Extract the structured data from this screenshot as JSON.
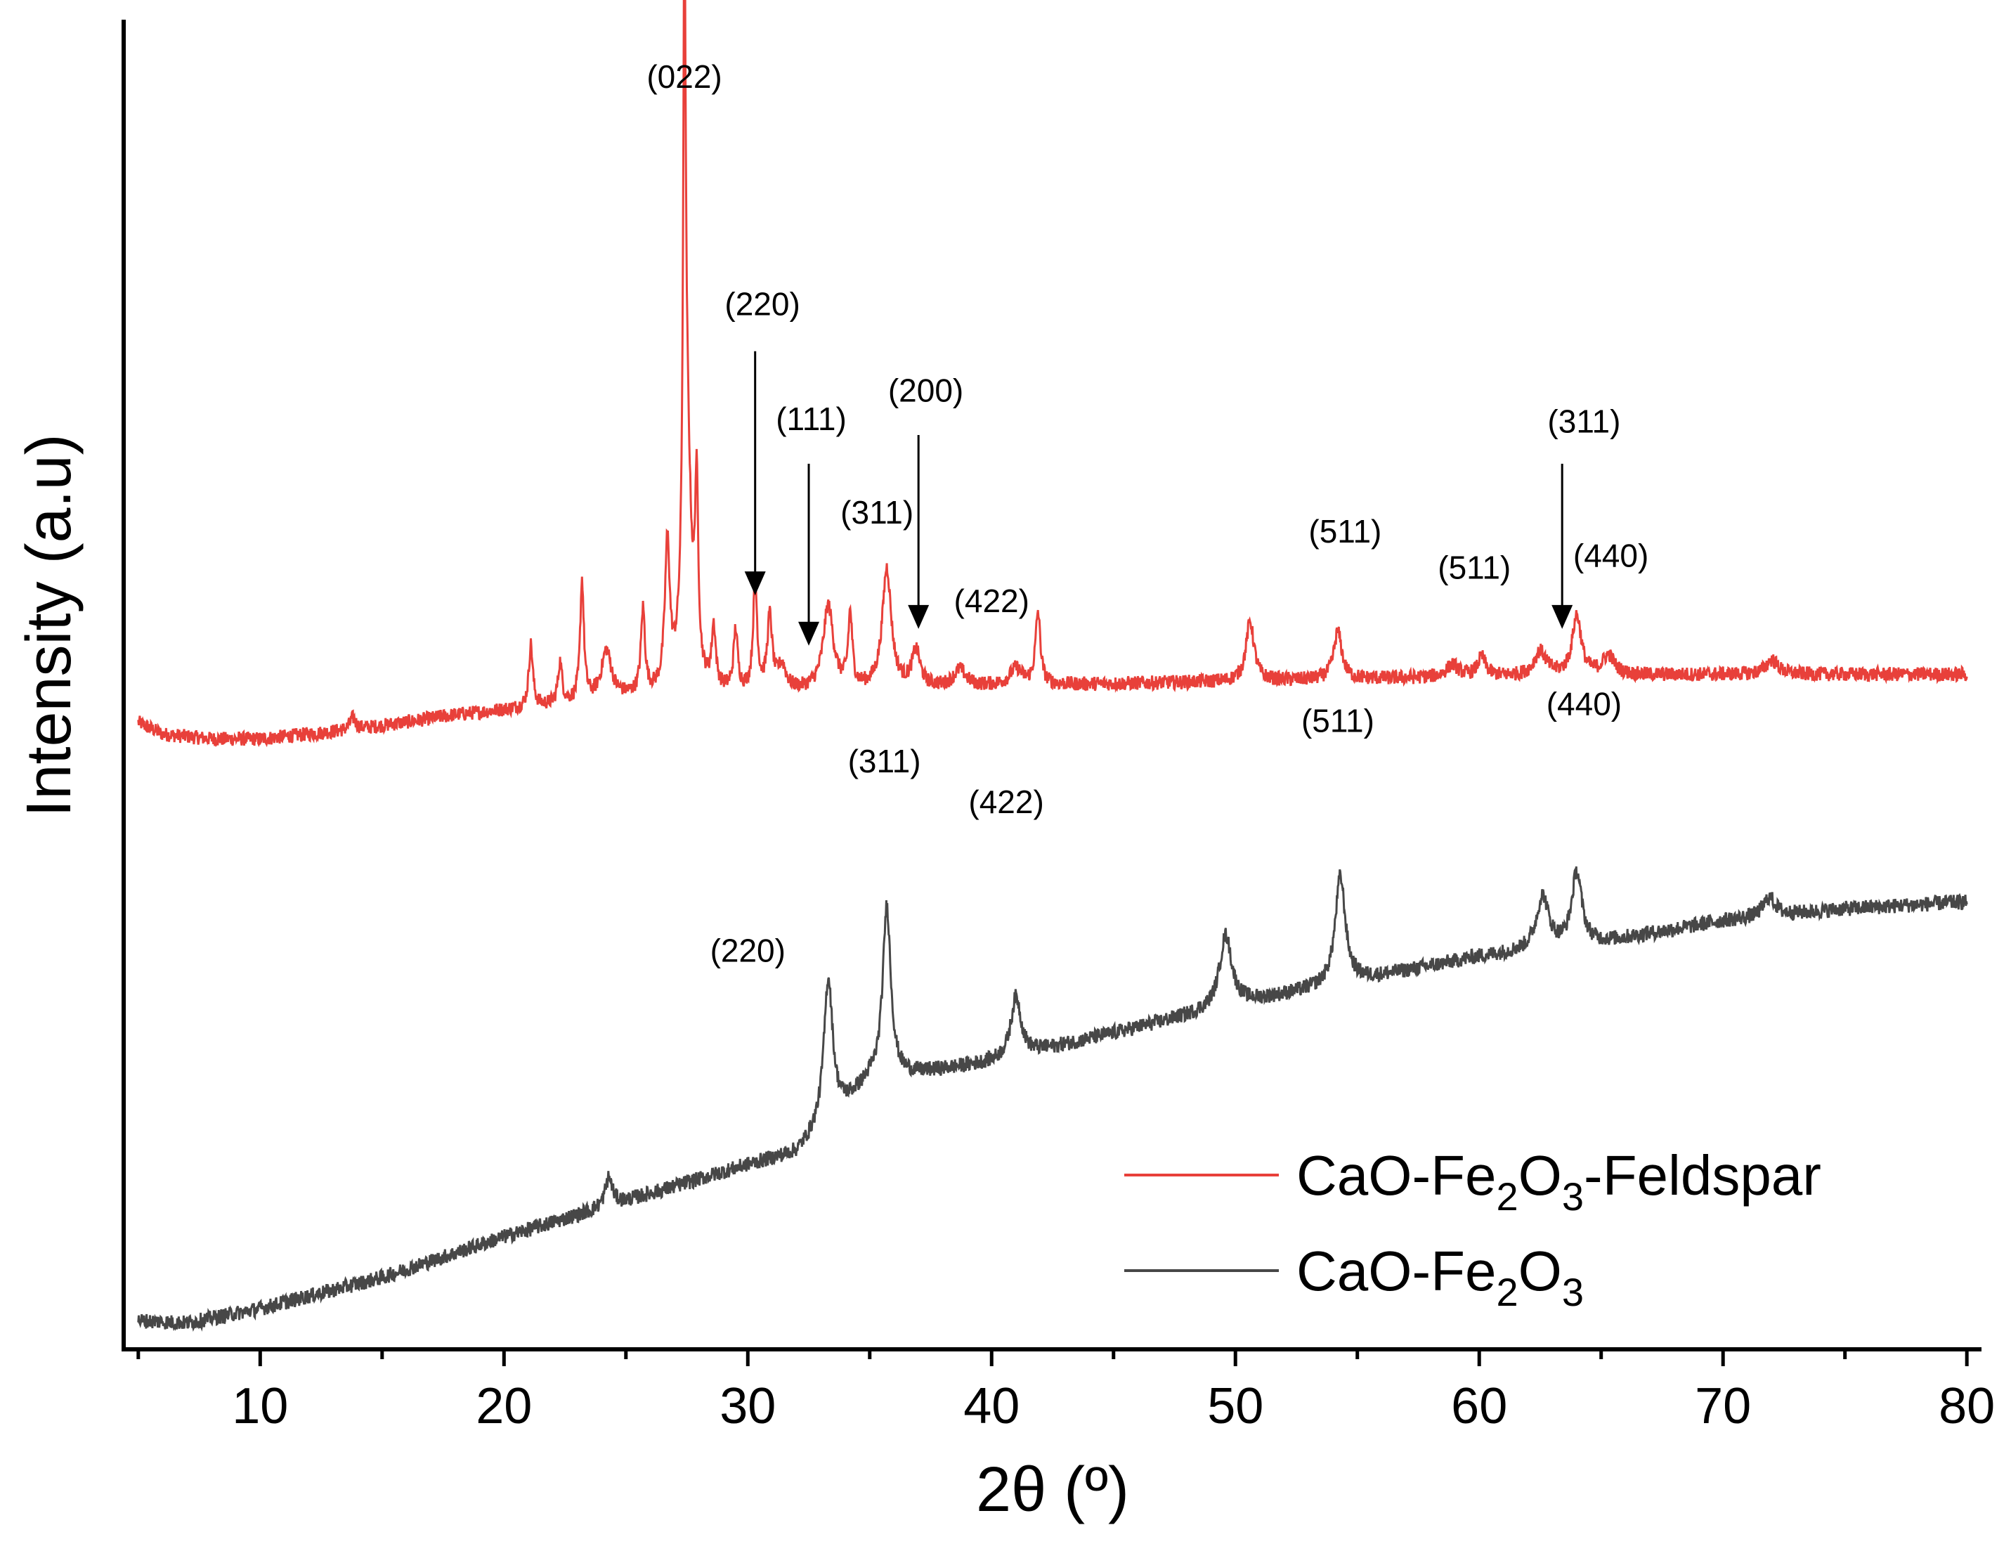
{
  "chart_data": {
    "type": "line",
    "title": "",
    "xlabel": "2θ (º)",
    "ylabel": "Intensity (a.u)",
    "xlim": [
      4.4,
      80.6
    ],
    "ylim": [
      -0.12,
      5.4
    ],
    "x_ticks": [
      10,
      20,
      30,
      40,
      50,
      60,
      70,
      80
    ],
    "x_tick_labels": [
      "10",
      "20",
      "30",
      "40",
      "50",
      "60",
      "70",
      "80"
    ],
    "y_ticks_visible": false,
    "grid": false,
    "legend_position": "bottom-right",
    "series": [
      {
        "name": "CaO-Fe2O3-Feldspar",
        "legend_label": {
          "base": "CaO-Fe",
          "sub1": "2",
          "mid": "O",
          "sub2": "3",
          "tail": "-Feldspar"
        },
        "color": "#e8403a",
        "noise": 0.03,
        "baseline": [
          [
            5,
            2.5
          ],
          [
            6,
            2.45
          ],
          [
            8,
            2.43
          ],
          [
            10,
            2.43
          ],
          [
            14,
            2.47
          ],
          [
            18,
            2.53
          ],
          [
            20,
            2.55
          ],
          [
            21,
            2.56
          ],
          [
            25,
            2.6
          ],
          [
            30,
            2.62
          ],
          [
            40,
            2.65
          ],
          [
            50,
            2.67
          ],
          [
            60,
            2.69
          ],
          [
            70,
            2.7
          ],
          [
            80,
            2.7
          ]
        ],
        "peaks": [
          [
            13.8,
            0.05,
            0.15
          ],
          [
            21.1,
            0.26,
            0.1
          ],
          [
            22.3,
            0.17,
            0.1
          ],
          [
            23.2,
            0.5,
            0.09
          ],
          [
            24.2,
            0.2,
            0.25
          ],
          [
            25.7,
            0.35,
            0.1
          ],
          [
            26.7,
            0.6,
            0.12
          ],
          [
            27.4,
            2.5,
            0.06
          ],
          [
            27.5,
            1.0,
            0.2
          ],
          [
            27.9,
            0.75,
            0.08
          ],
          [
            28.6,
            0.25,
            0.1
          ],
          [
            29.5,
            0.25,
            0.1
          ],
          [
            30.3,
            0.45,
            0.1
          ],
          [
            30.9,
            0.3,
            0.12
          ],
          [
            31.4,
            0.1,
            0.2
          ],
          [
            33.3,
            0.35,
            0.25
          ],
          [
            34.2,
            0.3,
            0.1
          ],
          [
            35.7,
            0.5,
            0.22
          ],
          [
            36.9,
            0.15,
            0.2
          ],
          [
            38.7,
            0.07,
            0.3
          ],
          [
            41.0,
            0.07,
            0.3
          ],
          [
            41.9,
            0.3,
            0.12
          ],
          [
            50.6,
            0.25,
            0.2
          ],
          [
            54.2,
            0.2,
            0.2
          ],
          [
            58.9,
            0.05,
            0.3
          ],
          [
            60.1,
            0.08,
            0.2
          ],
          [
            62.5,
            0.1,
            0.3
          ],
          [
            64.0,
            0.25,
            0.22
          ],
          [
            65.3,
            0.08,
            0.3
          ],
          [
            72.0,
            0.06,
            0.3
          ]
        ]
      },
      {
        "name": "CaO-Fe2O3",
        "legend_label": {
          "base": "CaO-Fe",
          "sub1": "2",
          "mid": "O",
          "sub2": "3",
          "tail": ""
        },
        "color": "#474747",
        "noise": 0.032,
        "baseline": [
          [
            5,
            0
          ],
          [
            7,
            -0.01
          ],
          [
            10,
            0.05
          ],
          [
            15,
            0.18
          ],
          [
            20,
            0.35
          ],
          [
            25,
            0.5
          ],
          [
            30,
            0.65
          ],
          [
            32,
            0.7
          ],
          [
            35,
            1.0
          ],
          [
            40,
            1.08
          ],
          [
            45,
            1.2
          ],
          [
            50,
            1.32
          ],
          [
            55,
            1.42
          ],
          [
            60,
            1.52
          ],
          [
            65,
            1.58
          ],
          [
            70,
            1.67
          ],
          [
            75,
            1.72
          ],
          [
            80,
            1.75
          ]
        ],
        "peaks": [
          [
            24.3,
            0.12,
            0.18
          ],
          [
            33.3,
            0.6,
            0.22
          ],
          [
            35.7,
            0.72,
            0.2
          ],
          [
            41.0,
            0.25,
            0.25
          ],
          [
            49.6,
            0.3,
            0.3
          ],
          [
            54.3,
            0.45,
            0.25
          ],
          [
            62.6,
            0.22,
            0.3
          ],
          [
            64.0,
            0.3,
            0.25
          ],
          [
            71.9,
            0.08,
            0.3
          ]
        ]
      }
    ],
    "annotations": [
      {
        "text": "(022)",
        "x": 27.4,
        "y": 5.15
      },
      {
        "text": "(220)",
        "x": 30.6,
        "y": 4.2
      },
      {
        "text": "(111)",
        "x": 32.6,
        "y": 3.72
      },
      {
        "text": "(200)",
        "x": 37.3,
        "y": 3.84
      },
      {
        "text": "(311)",
        "x": 35.3,
        "y": 3.33
      },
      {
        "text": "(422)",
        "x": 40.0,
        "y": 2.96
      },
      {
        "text": "(511)",
        "x": 54.5,
        "y": 3.25
      },
      {
        "text": "(511)",
        "x": 59.8,
        "y": 3.1
      },
      {
        "text": "(311)",
        "x": 64.3,
        "y": 3.71
      },
      {
        "text": "(440)",
        "x": 65.4,
        "y": 3.15
      },
      {
        "text": "(311)",
        "x": 35.6,
        "y": 2.29
      },
      {
        "text": "(422)",
        "x": 40.6,
        "y": 2.12
      },
      {
        "text": "(220)",
        "x": 30.0,
        "y": 1.5
      },
      {
        "text": "(511)",
        "x": 54.2,
        "y": 2.46
      },
      {
        "text": "(440)",
        "x": 64.3,
        "y": 2.53
      }
    ],
    "arrows": [
      {
        "label": "(220)",
        "x": 30.3,
        "y_from": 4.05,
        "y_to": 3.03
      },
      {
        "label": "(111)",
        "x": 32.5,
        "y_from": 3.58,
        "y_to": 2.82
      },
      {
        "label": "(200)",
        "x": 37.0,
        "y_from": 3.7,
        "y_to": 2.89
      },
      {
        "label": "(311)",
        "x": 63.4,
        "y_from": 3.58,
        "y_to": 2.89
      }
    ]
  }
}
